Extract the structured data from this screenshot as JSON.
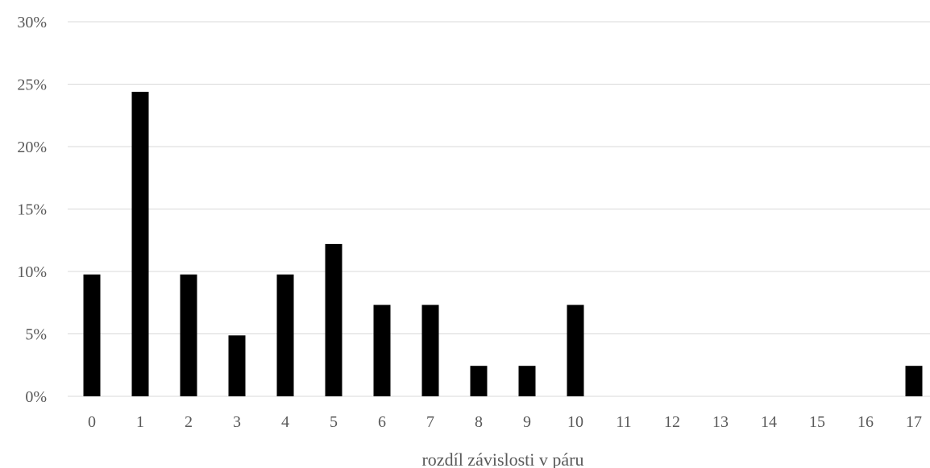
{
  "chart_data": {
    "type": "bar",
    "title": "",
    "xlabel": "rozdíl závislosti v páru",
    "ylabel": "",
    "categories": [
      "0",
      "1",
      "2",
      "3",
      "4",
      "5",
      "6",
      "7",
      "8",
      "9",
      "10",
      "11",
      "12",
      "13",
      "14",
      "15",
      "16",
      "17"
    ],
    "values": [
      9.76,
      24.39,
      9.76,
      4.88,
      9.76,
      12.2,
      7.32,
      7.32,
      2.44,
      2.44,
      7.32,
      0,
      0,
      0,
      0,
      0,
      0,
      2.44
    ],
    "ylim": [
      0,
      30
    ],
    "yticks": [
      "0%",
      "5%",
      "10%",
      "15%",
      "20%",
      "25%",
      "30%"
    ],
    "ytick_values": [
      0,
      5,
      10,
      15,
      20,
      25,
      30
    ],
    "grid": true,
    "legend": "none",
    "bar_color": "#000000",
    "grid_color": "#d9d9d9"
  }
}
